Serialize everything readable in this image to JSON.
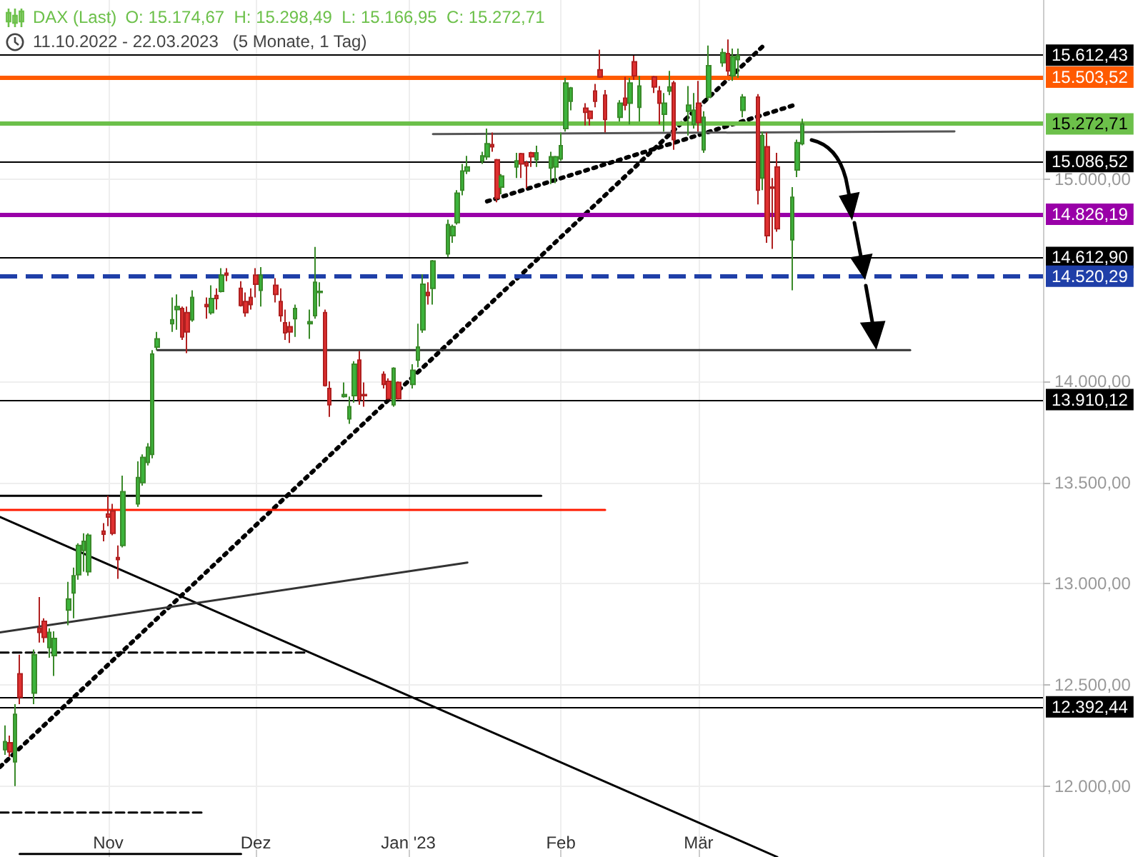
{
  "chart_data": {
    "type": "candlestick",
    "title": "DAX (Last)",
    "subtitle": "11.10.2022 - 22.03.2023   (5 Monate, 1 Tag)",
    "annotations": [
      "O: 15.174,67  H: 15.298,49  L: 15.166,95  C: 15.272,71"
    ],
    "x": [
      "2022-10-11",
      "2022-10-12",
      "2022-10-13",
      "2022-10-14",
      "2022-10-17",
      "2022-10-18",
      "2022-10-19",
      "2022-10-20",
      "2022-10-21",
      "2022-10-24",
      "2022-10-25",
      "2022-10-26",
      "2022-10-27",
      "2022-10-28",
      "2022-10-31",
      "2022-11-01",
      "2022-11-02",
      "2022-11-03",
      "2022-11-04",
      "2022-11-07",
      "2022-11-08",
      "2022-11-09",
      "2022-11-10",
      "2022-11-11",
      "2022-11-14",
      "2022-11-15",
      "2022-11-16",
      "2022-11-17",
      "2022-11-18",
      "2022-11-21",
      "2022-11-22",
      "2022-11-23",
      "2022-11-24",
      "2022-11-25",
      "2022-11-28",
      "2022-11-29",
      "2022-11-30",
      "2022-12-01",
      "2022-12-02",
      "2022-12-05",
      "2022-12-06",
      "2022-12-07",
      "2022-12-08",
      "2022-12-09",
      "2022-12-12",
      "2022-12-13",
      "2022-12-14",
      "2022-12-15",
      "2022-12-16",
      "2022-12-19",
      "2022-12-20",
      "2022-12-21",
      "2022-12-22",
      "2022-12-23",
      "2022-12-27",
      "2022-12-28",
      "2022-12-29",
      "2022-12-30",
      "2023-01-02",
      "2023-01-03",
      "2023-01-04",
      "2023-01-05",
      "2023-01-06",
      "2023-01-09",
      "2023-01-10",
      "2023-01-11",
      "2023-01-12",
      "2023-01-13",
      "2023-01-16",
      "2023-01-17",
      "2023-01-18",
      "2023-01-19",
      "2023-01-20",
      "2023-01-23",
      "2023-01-24",
      "2023-01-25",
      "2023-01-26",
      "2023-01-27",
      "2023-01-30",
      "2023-01-31",
      "2023-02-01",
      "2023-02-02",
      "2023-02-03",
      "2023-02-06",
      "2023-02-07",
      "2023-02-08",
      "2023-02-09",
      "2023-02-10",
      "2023-02-13",
      "2023-02-14",
      "2023-02-15",
      "2023-02-16",
      "2023-02-17",
      "2023-02-20",
      "2023-02-21",
      "2023-02-22",
      "2023-02-23",
      "2023-02-24",
      "2023-02-27",
      "2023-02-28",
      "2023-03-01",
      "2023-03-02",
      "2023-03-03",
      "2023-03-06",
      "2023-03-07",
      "2023-03-08",
      "2023-03-09",
      "2023-03-10",
      "2023-03-13",
      "2023-03-14",
      "2023-03-15",
      "2023-03-16",
      "2023-03-17",
      "2023-03-20",
      "2023-03-21",
      "2023-03-22"
    ],
    "ohlc": [
      [
        12180,
        12300,
        12155,
        12220
      ],
      [
        12215,
        12250,
        12145,
        12170
      ],
      [
        12120,
        12405,
        12000,
        12355
      ],
      [
        12555,
        12650,
        12405,
        12440
      ],
      [
        12460,
        12675,
        12405,
        12650
      ],
      [
        12780,
        12935,
        12710,
        12760
      ],
      [
        12815,
        12830,
        12710,
        12735
      ],
      [
        12685,
        12780,
        12635,
        12760
      ],
      [
        12645,
        12765,
        12545,
        12730
      ],
      [
        12870,
        13010,
        12795,
        12925
      ],
      [
        12955,
        13080,
        12830,
        13040
      ],
      [
        13045,
        13200,
        13020,
        13190
      ],
      [
        13165,
        13250,
        13060,
        13210
      ],
      [
        13060,
        13250,
        13040,
        13240
      ],
      [
        13260,
        13300,
        13210,
        13245
      ],
      [
        13345,
        13435,
        13285,
        13330
      ],
      [
        13360,
        13395,
        13240,
        13250
      ],
      [
        13130,
        13190,
        13025,
        13120
      ],
      [
        13190,
        13535,
        13180,
        13455
      ],
      [
        13395,
        13605,
        13380,
        13525
      ],
      [
        13500,
        13640,
        13485,
        13625
      ],
      [
        13600,
        13695,
        13585,
        13675
      ],
      [
        13640,
        14155,
        13620,
        14135
      ],
      [
        14170,
        14245,
        14155,
        14210
      ],
      [
        14285,
        14415,
        14245,
        14305
      ],
      [
        14355,
        14430,
        14255,
        14370
      ],
      [
        14360,
        14370,
        14205,
        14220
      ],
      [
        14340,
        14370,
        14140,
        14245
      ],
      [
        14305,
        14450,
        14295,
        14415
      ],
      [
        14380,
        14415,
        14310,
        14370
      ],
      [
        14340,
        14475,
        14330,
        14410
      ],
      [
        14425,
        14460,
        14355,
        14410
      ],
      [
        14445,
        14560,
        14440,
        14525
      ],
      [
        14535,
        14560,
        14495,
        14525
      ],
      [
        14460,
        14495,
        14370,
        14375
      ],
      [
        14395,
        14440,
        14320,
        14340
      ],
      [
        14415,
        14460,
        14355,
        14380
      ],
      [
        14525,
        14560,
        14415,
        14480
      ],
      [
        14450,
        14565,
        14370,
        14525
      ],
      [
        14475,
        14510,
        14390,
        14430
      ],
      [
        14395,
        14460,
        14295,
        14325
      ],
      [
        14290,
        14355,
        14205,
        14240
      ],
      [
        14270,
        14295,
        14190,
        14245
      ],
      [
        14310,
        14380,
        14220,
        14360
      ],
      [
        14285,
        14355,
        14210,
        14295
      ],
      [
        14325,
        14665,
        14310,
        14490
      ],
      [
        14440,
        14490,
        14370,
        14445
      ],
      [
        14340,
        14355,
        13975,
        13980
      ],
      [
        13965,
        14000,
        13825,
        13885
      ],
      [
        13925,
        13995,
        13920,
        13935
      ],
      [
        13815,
        13925,
        13790,
        13875
      ],
      [
        13930,
        14100,
        13895,
        14085
      ],
      [
        14105,
        14150,
        13885,
        13910
      ],
      [
        13935,
        13995,
        13875,
        13930
      ],
      [
        14035,
        14050,
        13965,
        13985
      ],
      [
        14000,
        14015,
        13910,
        13915
      ],
      [
        13885,
        14070,
        13875,
        14065
      ],
      [
        13995,
        14000,
        13910,
        13915
      ],
      [
        13985,
        14085,
        13965,
        14055
      ],
      [
        14105,
        14285,
        14070,
        14170
      ],
      [
        14255,
        14530,
        14240,
        14480
      ],
      [
        14440,
        14490,
        14380,
        14425
      ],
      [
        14460,
        14600,
        14380,
        14595
      ],
      [
        14630,
        14800,
        14615,
        14775
      ],
      [
        14720,
        14775,
        14685,
        14765
      ],
      [
        14785,
        14945,
        14775,
        14930
      ],
      [
        14945,
        15075,
        14920,
        15040
      ],
      [
        15040,
        15115,
        15025,
        15060
      ],
      [
        15090,
        15135,
        15075,
        15115
      ],
      [
        15110,
        15250,
        15095,
        15175
      ],
      [
        15170,
        15230,
        15135,
        15160
      ],
      [
        15095,
        15100,
        14885,
        14905
      ],
      [
        14960,
        15025,
        14925,
        15015
      ],
      [
        15060,
        15130,
        15005,
        15090
      ],
      [
        15125,
        15130,
        15005,
        15075
      ],
      [
        15080,
        15090,
        14955,
        15065
      ],
      [
        15130,
        15135,
        15060,
        15110
      ],
      [
        15095,
        15165,
        15060,
        15130
      ],
      [
        15055,
        15135,
        14975,
        15110
      ],
      [
        15060,
        15115,
        14980,
        15110
      ],
      [
        15100,
        15230,
        15090,
        15165
      ],
      [
        15250,
        15500,
        15235,
        15475
      ],
      [
        15385,
        15455,
        15340,
        15450
      ],
      [
        15350,
        15375,
        15265,
        15330
      ],
      [
        15335,
        15340,
        15265,
        15300
      ],
      [
        15435,
        15470,
        15355,
        15385
      ],
      [
        15540,
        15640,
        15500,
        15505
      ],
      [
        15415,
        15440,
        15230,
        15295
      ],
      [
        15305,
        15390,
        15285,
        15375
      ],
      [
        15400,
        15505,
        15340,
        15365
      ],
      [
        15375,
        15500,
        15270,
        15475
      ],
      [
        15580,
        15610,
        15490,
        15510
      ],
      [
        15355,
        15510,
        15285,
        15460
      ],
      [
        15505,
        15510,
        15425,
        15455
      ],
      [
        15435,
        15460,
        15270,
        15375
      ],
      [
        15320,
        15425,
        15235,
        15375
      ],
      [
        15435,
        15535,
        15415,
        15455
      ],
      [
        15475,
        15485,
        15145,
        15195
      ],
      [
        15335,
        15460,
        15215,
        15365
      ],
      [
        15270,
        15425,
        15250,
        15340
      ],
      [
        15375,
        15485,
        15235,
        15280
      ],
      [
        15145,
        15335,
        15130,
        15305
      ],
      [
        15405,
        15660,
        15390,
        15560
      ],
      [
        15575,
        15645,
        15555,
        15625
      ],
      [
        15620,
        15690,
        15510,
        15535
      ],
      [
        15510,
        15645,
        15485,
        15605
      ],
      [
        15590,
        15645,
        15500,
        15610
      ],
      [
        15340,
        15420,
        15305,
        15405
      ],
      [
        15405,
        15420,
        14875,
        14945
      ],
      [
        15005,
        15235,
        14945,
        15215
      ],
      [
        15160,
        15230,
        14685,
        14720
      ],
      [
        14960,
        15005,
        14655,
        14955
      ],
      [
        15060,
        15130,
        14740,
        14755
      ],
      [
        14700,
        14960,
        14450,
        14910
      ],
      [
        15045,
        15195,
        15010,
        15180
      ],
      [
        15174.67,
        15298.49,
        15166.95,
        15272.71
      ]
    ],
    "series": [
      {
        "type": "line",
        "color": "#000000",
        "line_style": "solid",
        "x": [
          "2022-10-10",
          "2023-03-17"
        ],
        "values": [
          13330,
          11650
        ]
      },
      {
        "type": "line",
        "color": "#000000",
        "line_style": "dotted",
        "x": [
          "2022-10-10",
          "2023-03-14"
        ],
        "values": [
          12095,
          15655
        ]
      },
      {
        "type": "line",
        "color": "#000000",
        "line_style": "dotted",
        "x": [
          "2023-01-17",
          "2023-03-21"
        ],
        "values": [
          14890,
          15370
        ]
      },
      {
        "type": "line",
        "color": "#333333",
        "line_style": "solid",
        "x": [
          "2022-10-10",
          "2023-01-13"
        ],
        "values": [
          12760,
          13105
        ]
      },
      {
        "type": "line",
        "color": "#555555",
        "line_style": "solid",
        "x": [
          "2023-01-06",
          "2023-04-22"
        ],
        "values": [
          15222,
          15236
        ]
      },
      {
        "type": "line",
        "color": "#333333",
        "line_style": "solid",
        "x": [
          "2022-11-11",
          "2023-04-13"
        ],
        "values": [
          14155,
          14155
        ]
      },
      {
        "type": "line",
        "color": "#000000",
        "line_style": "solid",
        "x": [
          "2022-10-10",
          "2023-01-28"
        ],
        "values": [
          13435,
          13435
        ]
      },
      {
        "type": "line",
        "color": "#ff1a00",
        "line_style": "solid",
        "x": [
          "2022-10-10",
          "2023-02-10"
        ],
        "values": [
          13365,
          13365
        ]
      },
      {
        "type": "line",
        "color": "#000000",
        "line_style": "dashed",
        "x": [
          "2022-10-10",
          "2022-12-11"
        ],
        "values": [
          12660,
          12660
        ]
      },
      {
        "type": "line",
        "color": "#000000",
        "line_style": "dashed",
        "x": [
          "2022-10-10",
          "2022-11-20"
        ],
        "values": [
          11870,
          11870
        ]
      },
      {
        "type": "line",
        "color": "#000000",
        "line_style": "solid",
        "x": [
          "2022-10-14",
          "2022-11-28"
        ],
        "values": [
          11665,
          11665
        ]
      }
    ],
    "ref_lines": [
      {
        "axis": "y",
        "value": 15612.43,
        "label": "15.612,43",
        "color": "#000000"
      },
      {
        "axis": "y",
        "value": 15503.52,
        "label": "15.503,52",
        "color": "#ff5a00"
      },
      {
        "axis": "y",
        "value": 15272.71,
        "label": "15.272,71",
        "color": "#6cc04a"
      },
      {
        "axis": "y",
        "value": 15086.52,
        "label": "15.086,52",
        "color": "#000000"
      },
      {
        "axis": "y",
        "value": 14826.19,
        "label": "14.826,19",
        "color": "#9900a8"
      },
      {
        "axis": "y",
        "value": 14612.9,
        "label": "14.612,90",
        "color": "#000000"
      },
      {
        "axis": "y",
        "value": 14520.29,
        "label": "14.520,29",
        "color": "#1f3fa8",
        "line_style": "dashed"
      },
      {
        "axis": "y",
        "value": 13910.12,
        "label": "13.910,12",
        "color": "#000000"
      },
      {
        "axis": "y",
        "value": 12439,
        "label": null,
        "color": "#000000"
      },
      {
        "axis": "y",
        "value": 12392.44,
        "label": "12.392,44",
        "color": "#000000"
      }
    ],
    "xlim": [
      "2022-10-10",
      "2023-05-10"
    ],
    "xticks": [
      {
        "value": "2022-11-01",
        "label": "Nov"
      },
      {
        "value": "2022-12-01",
        "label": "Dez"
      },
      {
        "value": "2023-01-01",
        "label": "Jan '23"
      },
      {
        "value": "2023-02-01",
        "label": "Feb"
      },
      {
        "value": "2023-03-01",
        "label": "Mär"
      }
    ],
    "ylim": [
      11650,
      15885
    ],
    "yticks": [
      {
        "value": 12000,
        "label": "12.000,00"
      },
      {
        "value": 12500,
        "label": "12.500,00"
      },
      {
        "value": 13000,
        "label": "13.000,00"
      },
      {
        "value": 13500,
        "label": "13.500,00"
      },
      {
        "value": 14000,
        "label": "14.000,00"
      },
      {
        "value": 15000,
        "label": "15.000,00"
      }
    ],
    "grid": true
  }
}
